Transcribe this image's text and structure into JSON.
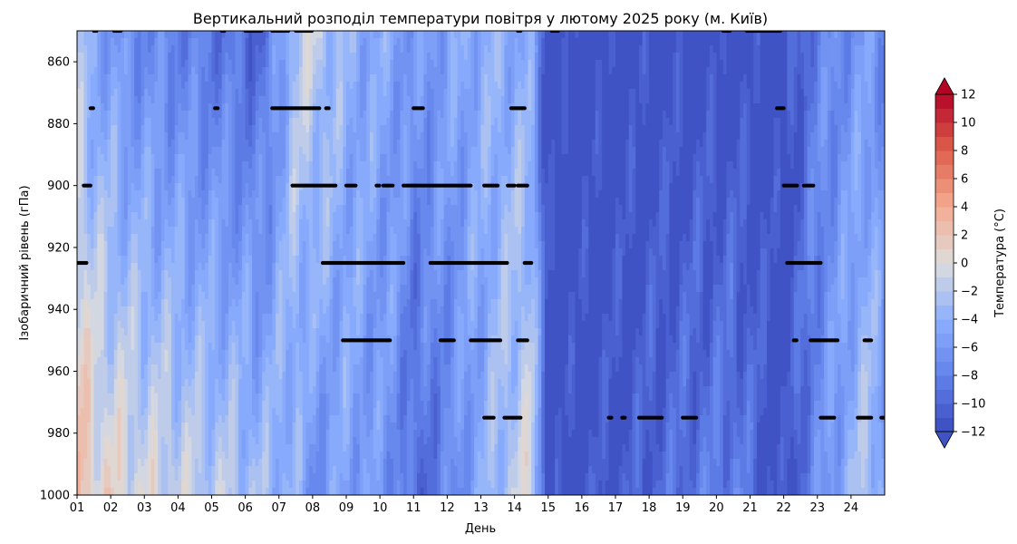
{
  "chart_data": {
    "type": "heatmap",
    "subtype": "filled-contour",
    "title": "Вертикальний розподіл температури повітря у лютому 2025 року (м. Київ)",
    "xlabel": "День",
    "ylabel": "Ізобаричний рівень (гПа)",
    "colorbar_label": "Температура (°C)",
    "x_range": [
      1,
      25
    ],
    "x_ticks": [
      "01",
      "02",
      "03",
      "04",
      "05",
      "06",
      "07",
      "08",
      "09",
      "10",
      "11",
      "12",
      "13",
      "14",
      "15",
      "16",
      "17",
      "18",
      "19",
      "20",
      "21",
      "22",
      "23",
      "24"
    ],
    "y_range_hpa": [
      850,
      1000
    ],
    "y_inverted": true,
    "y_ticks": [
      "860",
      "880",
      "900",
      "920",
      "940",
      "960",
      "980",
      "1000"
    ],
    "colorbar_range": [
      -12,
      12
    ],
    "colorbar_step": 1,
    "colorbar_ticks": [
      "12",
      "10",
      "8",
      "6",
      "4",
      "2",
      "0",
      "−2",
      "−4",
      "−6",
      "−8",
      "−10",
      "−12"
    ],
    "colorbar_extend": "both",
    "colormap": "coolwarm",
    "colors": {
      "cold": "#3b4cc0",
      "neutral": "#dddddd",
      "warm": "#b40426",
      "marker": "#000000"
    },
    "temperature_profile_approx": [
      {
        "day": 1.0,
        "t_top": -3,
        "t_bottom": 3
      },
      {
        "day": 1.5,
        "t_top": -5,
        "t_bottom": 1
      },
      {
        "day": 2.5,
        "t_top": -7,
        "t_bottom": 0
      },
      {
        "day": 4.0,
        "t_top": -8,
        "t_bottom": -1
      },
      {
        "day": 5.5,
        "t_top": -9,
        "t_bottom": -2
      },
      {
        "day": 6.5,
        "t_top": -10,
        "t_bottom": -3
      },
      {
        "day": 7.5,
        "t_top": -2,
        "t_bottom": -4
      },
      {
        "day": 8.0,
        "t_top": -1,
        "t_bottom": -7
      },
      {
        "day": 9.0,
        "t_top": -4,
        "t_bottom": -5
      },
      {
        "day": 10.5,
        "t_top": -5,
        "t_bottom": -7
      },
      {
        "day": 11.0,
        "t_top": -6,
        "t_bottom": -10
      },
      {
        "day": 12.0,
        "t_top": -5,
        "t_bottom": -8
      },
      {
        "day": 13.5,
        "t_top": -4,
        "t_bottom": -3
      },
      {
        "day": 14.5,
        "t_top": -5,
        "t_bottom": 0
      },
      {
        "day": 15.0,
        "t_top": -12,
        "t_bottom": -12
      },
      {
        "day": 17.0,
        "t_top": -12,
        "t_bottom": -11
      },
      {
        "day": 19.0,
        "t_top": -12,
        "t_bottom": -9
      },
      {
        "day": 20.5,
        "t_top": -12,
        "t_bottom": -8
      },
      {
        "day": 22.0,
        "t_top": -12,
        "t_bottom": -12
      },
      {
        "day": 23.0,
        "t_top": -8,
        "t_bottom": -7
      },
      {
        "day": 24.5,
        "t_top": -6,
        "t_bottom": -2
      },
      {
        "day": 25.0,
        "t_top": -7,
        "t_bottom": -5
      }
    ],
    "marker_series": [
      {
        "level_hpa": 850,
        "days": [
          [
            1.5,
            1.6
          ],
          [
            2.1,
            2.3
          ],
          [
            5.3,
            5.4
          ],
          [
            6.0,
            6.5
          ],
          [
            6.8,
            7.3
          ],
          [
            7.5,
            8.0
          ],
          [
            14.1,
            14.2
          ],
          [
            15.1,
            15.3
          ],
          [
            20.2,
            20.4
          ],
          [
            20.9,
            21.9
          ]
        ]
      },
      {
        "level_hpa": 875,
        "days": [
          [
            1.4,
            1.5
          ],
          [
            5.1,
            5.2
          ],
          [
            6.8,
            8.2
          ],
          [
            8.4,
            8.5
          ],
          [
            11.0,
            11.3
          ],
          [
            13.9,
            14.3
          ],
          [
            21.8,
            22.0
          ]
        ]
      },
      {
        "level_hpa": 900,
        "days": [
          [
            1.2,
            1.4
          ],
          [
            7.4,
            8.7
          ],
          [
            9.0,
            9.3
          ],
          [
            9.9,
            10.0
          ],
          [
            10.1,
            10.4
          ],
          [
            10.7,
            12.7
          ],
          [
            13.1,
            13.5
          ],
          [
            13.8,
            14.0
          ],
          [
            14.1,
            14.4
          ],
          [
            22.0,
            22.4
          ],
          [
            22.6,
            22.9
          ]
        ]
      },
      {
        "level_hpa": 925,
        "days": [
          [
            1.0,
            1.3
          ],
          [
            8.3,
            10.7
          ],
          [
            11.5,
            13.8
          ],
          [
            14.3,
            14.5
          ],
          [
            22.1,
            23.1
          ]
        ]
      },
      {
        "level_hpa": 950,
        "days": [
          [
            8.9,
            10.3
          ],
          [
            11.8,
            12.2
          ],
          [
            12.7,
            13.6
          ],
          [
            14.1,
            14.4
          ],
          [
            22.3,
            22.4
          ],
          [
            22.8,
            23.6
          ],
          [
            24.4,
            24.6
          ]
        ]
      },
      {
        "level_hpa": 975,
        "days": [
          [
            13.1,
            13.4
          ],
          [
            13.7,
            14.2
          ],
          [
            16.8,
            16.9
          ],
          [
            17.2,
            17.3
          ],
          [
            17.7,
            18.4
          ],
          [
            19.0,
            19.4
          ],
          [
            23.1,
            23.5
          ],
          [
            24.2,
            24.6
          ],
          [
            24.9,
            25.0
          ]
        ]
      }
    ]
  }
}
